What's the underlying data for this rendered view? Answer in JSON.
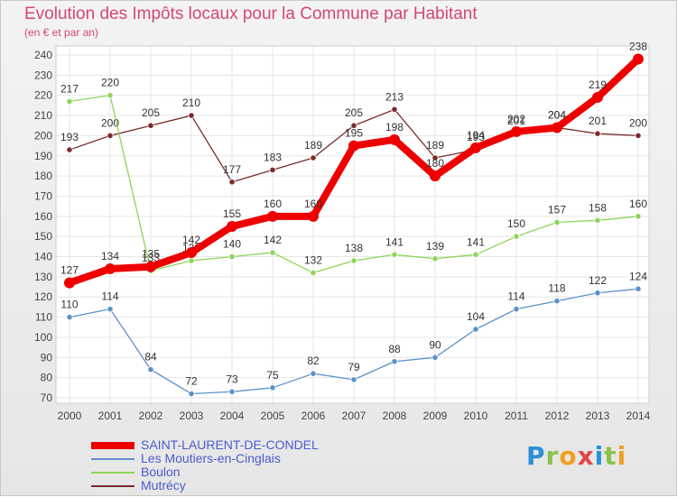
{
  "title": "Evolution des Impôts locaux pour la Commune par Habitant",
  "subtitle": "(en € et par an)",
  "brand": "Proxiti",
  "chart_data": {
    "type": "line",
    "title": "Evolution des Impôts locaux pour la Commune par Habitant",
    "subtitle": "(en € et par an)",
    "x": [
      2000,
      2001,
      2002,
      2003,
      2004,
      2005,
      2006,
      2007,
      2008,
      2009,
      2010,
      2011,
      2012,
      2013,
      2014
    ],
    "ylim": [
      70,
      240
    ],
    "yticks": [
      70,
      80,
      90,
      100,
      110,
      120,
      130,
      140,
      150,
      160,
      170,
      180,
      190,
      200,
      210,
      220,
      230,
      240
    ],
    "grid": true,
    "legend_position": "bottom-left",
    "series": [
      {
        "name": "Mutrécy",
        "color": "#7a2a2a",
        "values": [
          193,
          200,
          205,
          210,
          177,
          183,
          189,
          205,
          213,
          189,
          193,
          201,
          204,
          201,
          200
        ]
      },
      {
        "name": "Boulon",
        "color": "#8ed45a",
        "values": [
          217,
          220,
          133,
          138,
          140,
          142,
          132,
          138,
          141,
          139,
          141,
          150,
          157,
          158,
          160
        ]
      },
      {
        "name": "Les Moutiers-en-Cinglais",
        "color": "#5b92c8",
        "values": [
          110,
          114,
          84,
          72,
          73,
          75,
          82,
          79,
          88,
          90,
          104,
          114,
          118,
          122,
          124
        ]
      },
      {
        "name": "SAINT-LAURENT-DE-CONDEL",
        "color": "#ee0000",
        "values": [
          127,
          134,
          135,
          142,
          155,
          160,
          160,
          195,
          198,
          180,
          194,
          202,
          204,
          219,
          238
        ]
      }
    ]
  }
}
